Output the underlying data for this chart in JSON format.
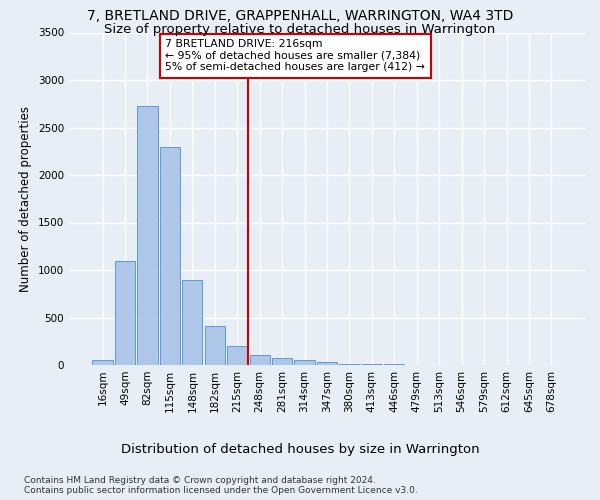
{
  "title": "7, BRETLAND DRIVE, GRAPPENHALL, WARRINGTON, WA4 3TD",
  "subtitle": "Size of property relative to detached houses in Warrington",
  "xlabel": "Distribution of detached houses by size in Warrington",
  "ylabel": "Number of detached properties",
  "categories": [
    "16sqm",
    "49sqm",
    "82sqm",
    "115sqm",
    "148sqm",
    "182sqm",
    "215sqm",
    "248sqm",
    "281sqm",
    "314sqm",
    "347sqm",
    "380sqm",
    "413sqm",
    "446sqm",
    "479sqm",
    "513sqm",
    "546sqm",
    "579sqm",
    "612sqm",
    "645sqm",
    "678sqm"
  ],
  "values": [
    55,
    1100,
    2730,
    2290,
    890,
    415,
    200,
    105,
    75,
    55,
    30,
    15,
    10,
    8,
    5,
    3,
    2,
    1,
    0,
    0,
    0
  ],
  "bar_color": "#aec6e8",
  "bar_edge_color": "#5b9bd5",
  "background_color": "#e8eef5",
  "grid_color": "#ffffff",
  "vline_x": 6.5,
  "vline_color": "#cc0000",
  "annotation_text": "7 BRETLAND DRIVE: 216sqm\n← 95% of detached houses are smaller (7,384)\n5% of semi-detached houses are larger (412) →",
  "annotation_box_color": "#ffffff",
  "annotation_box_edge_color": "#cc0000",
  "ylim": [
    0,
    3500
  ],
  "yticks": [
    0,
    500,
    1000,
    1500,
    2000,
    2500,
    3000,
    3500
  ],
  "footnote": "Contains HM Land Registry data © Crown copyright and database right 2024.\nContains public sector information licensed under the Open Government Licence v3.0.",
  "title_fontsize": 10,
  "subtitle_fontsize": 9.5,
  "xlabel_fontsize": 9.5,
  "ylabel_fontsize": 8.5,
  "tick_fontsize": 7.5,
  "footnote_fontsize": 6.5
}
